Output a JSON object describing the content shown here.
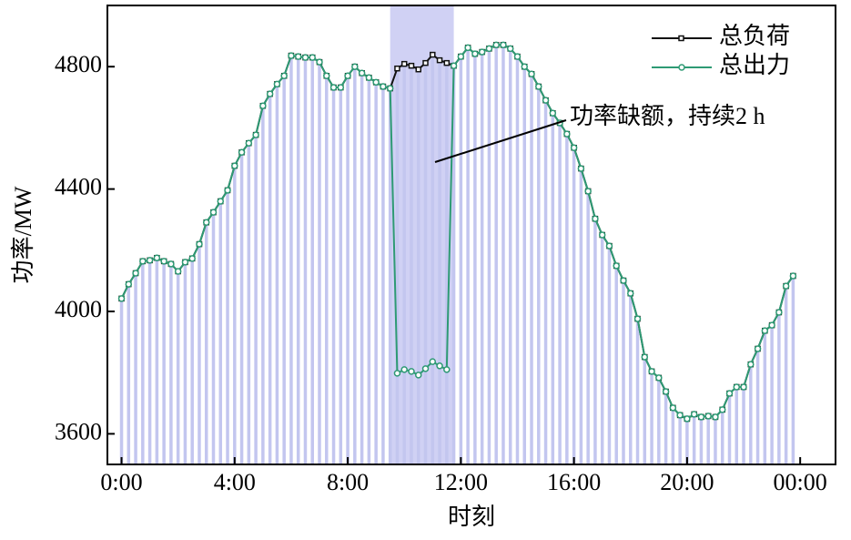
{
  "chart_data": {
    "type": "line",
    "x_label": "时刻",
    "y_label": "功率/MW",
    "x": [
      0,
      0.25,
      0.5,
      0.75,
      1,
      1.25,
      1.5,
      1.75,
      2,
      2.25,
      2.5,
      2.75,
      3,
      3.25,
      3.5,
      3.75,
      4,
      4.25,
      4.5,
      4.75,
      5,
      5.25,
      5.5,
      5.75,
      6,
      6.25,
      6.5,
      6.75,
      7,
      7.25,
      7.5,
      7.75,
      8,
      8.25,
      8.5,
      8.75,
      9,
      9.25,
      9.5,
      9.75,
      10,
      10.25,
      10.5,
      10.75,
      11,
      11.25,
      11.5,
      11.75,
      12,
      12.25,
      12.5,
      12.75,
      13,
      13.25,
      13.5,
      13.75,
      14,
      14.25,
      14.5,
      14.75,
      15,
      15.25,
      15.5,
      15.75,
      16,
      16.25,
      16.5,
      16.75,
      17,
      17.25,
      17.5,
      17.75,
      18,
      18.25,
      18.5,
      18.75,
      19,
      19.25,
      19.5,
      19.75,
      20,
      20.25,
      20.5,
      20.75,
      21,
      21.25,
      21.5,
      21.75,
      22,
      22.25,
      22.5,
      22.75,
      23,
      23.25,
      23.5,
      23.75
    ],
    "series": [
      {
        "name": "总负荷",
        "color": "#111111",
        "marker": "square",
        "values": [
          4042,
          4089,
          4125,
          4164,
          4167,
          4175,
          4164,
          4155,
          4131,
          4161,
          4173,
          4220,
          4291,
          4324,
          4360,
          4396,
          4476,
          4520,
          4550,
          4577,
          4672,
          4711,
          4743,
          4770,
          4836,
          4833,
          4830,
          4830,
          4815,
          4770,
          4732,
          4732,
          4770,
          4800,
          4779,
          4764,
          4749,
          4735,
          4729,
          4794,
          4809,
          4803,
          4791,
          4812,
          4839,
          4821,
          4812,
          4803,
          4833,
          4862,
          4842,
          4848,
          4859,
          4871,
          4871,
          4859,
          4833,
          4800,
          4776,
          4735,
          4690,
          4648,
          4616,
          4580,
          4535,
          4467,
          4393,
          4303,
          4250,
          4214,
          4149,
          4101,
          4059,
          3976,
          3851,
          3804,
          3783,
          3738,
          3685,
          3661,
          3649,
          3664,
          3655,
          3658,
          3655,
          3679,
          3732,
          3753,
          3753,
          3827,
          3878,
          3937,
          3955,
          3997,
          4083,
          4116
        ]
      },
      {
        "name": "总出力",
        "color": "#2e9a74",
        "marker": "circle",
        "values": [
          4042,
          4089,
          4125,
          4164,
          4167,
          4175,
          4164,
          4155,
          4131,
          4161,
          4173,
          4220,
          4291,
          4324,
          4360,
          4396,
          4476,
          4520,
          4550,
          4577,
          4672,
          4711,
          4743,
          4770,
          4836,
          4833,
          4830,
          4830,
          4815,
          4770,
          4732,
          4732,
          4770,
          4800,
          4779,
          4764,
          4749,
          4735,
          4729,
          3798,
          3810,
          3804,
          3792,
          3813,
          3836,
          3822,
          3810,
          4803,
          4833,
          4862,
          4842,
          4848,
          4859,
          4871,
          4871,
          4859,
          4833,
          4800,
          4776,
          4735,
          4690,
          4648,
          4616,
          4580,
          4535,
          4467,
          4393,
          4303,
          4250,
          4214,
          4149,
          4101,
          4059,
          3976,
          3851,
          3804,
          3783,
          3738,
          3685,
          3661,
          3649,
          3664,
          3655,
          3658,
          3655,
          3679,
          3732,
          3753,
          3753,
          3827,
          3878,
          3937,
          3955,
          3997,
          4083,
          4116
        ]
      }
    ],
    "bar_color": "#c3c6ef",
    "highlight": {
      "range": [
        9.5,
        11.75
      ],
      "color": "#c8c9f2",
      "annotation": "功率缺额，持续2 h"
    },
    "xlim": [
      -0.5,
      25.25
    ],
    "xticks": [
      {
        "value": 0,
        "label": "0:00"
      },
      {
        "value": 4,
        "label": "4:00"
      },
      {
        "value": 8,
        "label": "8:00"
      },
      {
        "value": 12,
        "label": "12:00"
      },
      {
        "value": 16,
        "label": "16:00"
      },
      {
        "value": 20,
        "label": "20:00"
      },
      {
        "value": 24,
        "label": "00:00"
      }
    ],
    "ylim": [
      3500,
      5000
    ],
    "yticks": [
      3600,
      4000,
      4400,
      4800
    ],
    "legend": "upper right"
  }
}
